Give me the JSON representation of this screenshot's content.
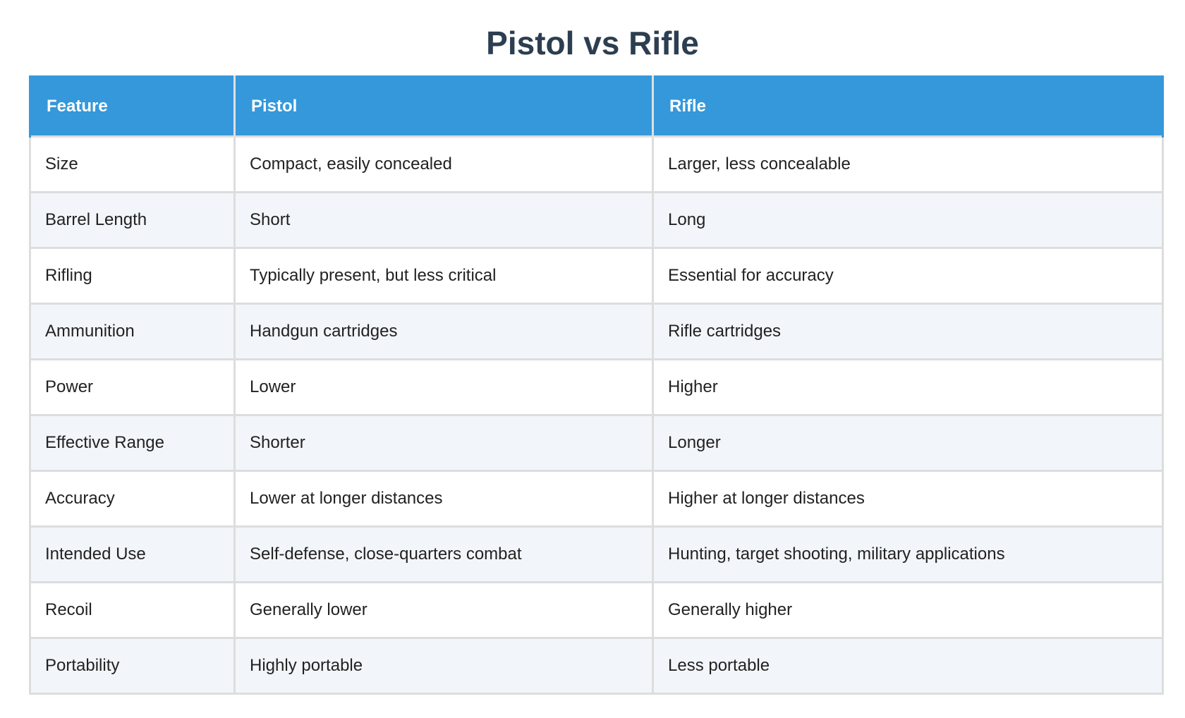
{
  "title": "Pistol vs Rifle",
  "table": {
    "headers": [
      "Feature",
      "Pistol",
      "Rifle"
    ],
    "rows": [
      [
        "Size",
        "Compact, easily concealed",
        "Larger, less concealable"
      ],
      [
        "Barrel Length",
        "Short",
        "Long"
      ],
      [
        "Rifling",
        "Typically present, but less critical",
        "Essential for accuracy"
      ],
      [
        "Ammunition",
        "Handgun cartridges",
        "Rifle cartridges"
      ],
      [
        "Power",
        "Lower",
        "Higher"
      ],
      [
        "Effective Range",
        "Shorter",
        "Longer"
      ],
      [
        "Accuracy",
        "Lower at longer distances",
        "Higher at longer distances"
      ],
      [
        "Intended Use",
        "Self-defense, close-quarters combat",
        "Hunting, target shooting, military applications"
      ],
      [
        "Recoil",
        "Generally lower",
        "Generally higher"
      ],
      [
        "Portability",
        "Highly portable",
        "Less portable"
      ]
    ]
  },
  "colors": {
    "title": "#2c3e50",
    "header_bg": "#3498db",
    "header_text": "#ffffff",
    "row_alt_bg": "#f2f5f9",
    "border": "#dddddd"
  }
}
